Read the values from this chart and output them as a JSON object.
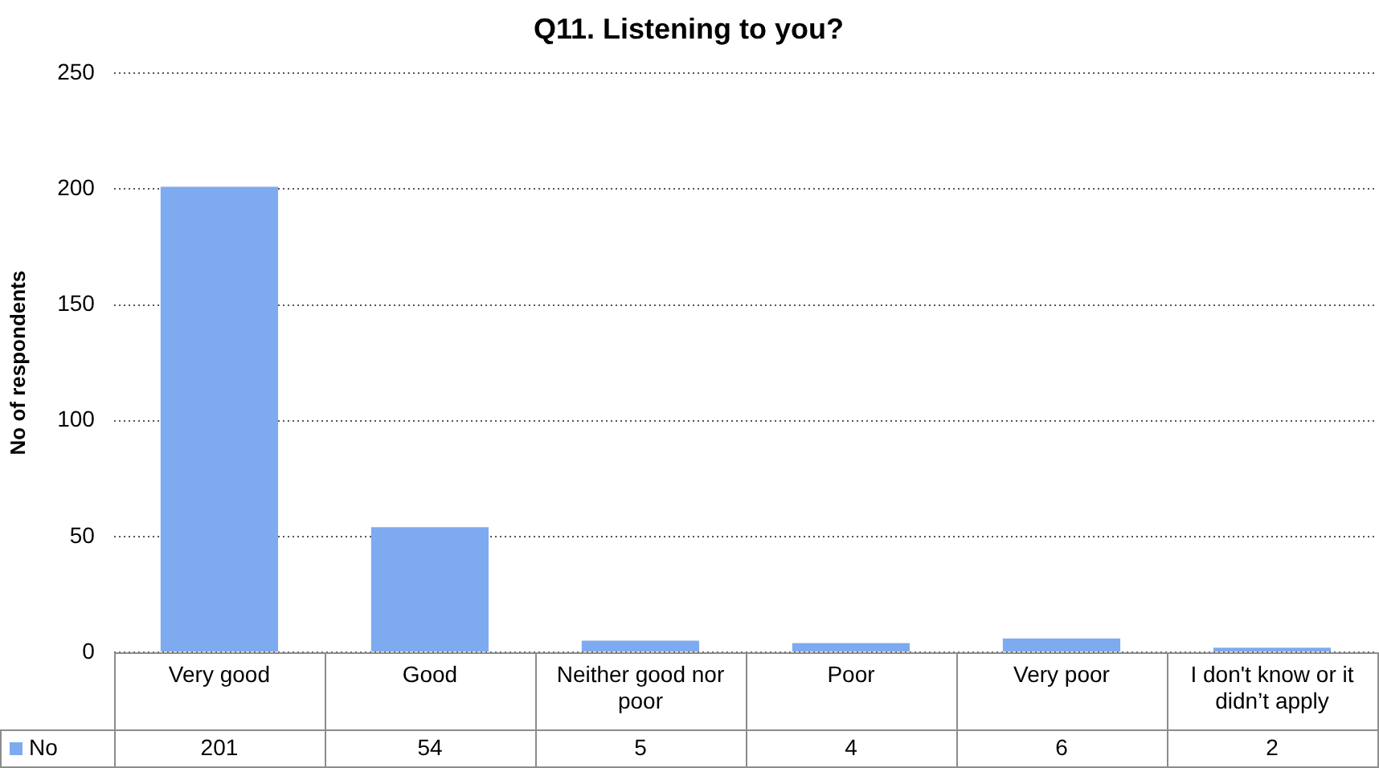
{
  "chart_data": {
    "type": "bar",
    "title": "Q11. Listening to you?",
    "ylabel": "No of respondents",
    "categories": [
      "Very good",
      "Good",
      "Neither good nor poor",
      "Poor",
      "Very poor",
      "I don't know or it didn’t apply"
    ],
    "series": [
      {
        "name": "No",
        "color": "#7eaaf0",
        "values": [
          201,
          54,
          5,
          4,
          6,
          2
        ]
      }
    ],
    "ylim": [
      0,
      250
    ],
    "yticks": [
      0,
      50,
      100,
      150,
      200,
      250
    ],
    "grid": "y",
    "legend": "bottom",
    "data_labels": true
  }
}
